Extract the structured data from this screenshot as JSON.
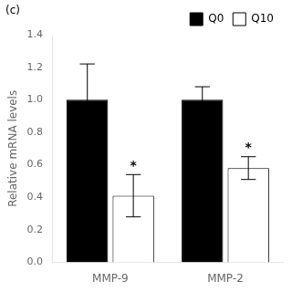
{
  "chart_data": {
    "type": "bar",
    "categories": [
      "MMP-9",
      "MMP-2"
    ],
    "series": [
      {
        "name": "Q0",
        "color": "#000000",
        "values": [
          1.0,
          1.0
        ],
        "errors": [
          0.22,
          0.08
        ]
      },
      {
        "name": "Q10",
        "color": "#ffffff",
        "values": [
          0.41,
          0.58
        ],
        "errors": [
          0.13,
          0.07
        ],
        "annotations": [
          "*",
          "*"
        ]
      }
    ],
    "ylabel": "Relative mRNA levels",
    "ylim": [
      0,
      1.4
    ],
    "yticks": [
      {
        "value": 0,
        "label": "0.0"
      },
      0.2,
      0.4,
      0.6,
      0.8,
      {
        "value": 1.0,
        "label": "1.0"
      },
      1.2,
      1.4
    ],
    "annotations": [
      "(c)"
    ],
    "legend": "upper right",
    "grid": false
  }
}
